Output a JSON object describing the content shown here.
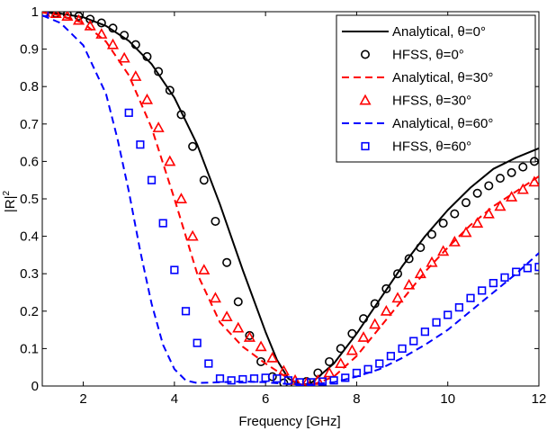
{
  "chart_data": {
    "type": "line",
    "title": "",
    "xlabel": "Frequency [GHz]",
    "ylabel": "|R|",
    "ylabel_superscript": "2",
    "xlim": [
      1.1,
      12
    ],
    "ylim": [
      0,
      1
    ],
    "x_ticks": [
      2,
      4,
      6,
      8,
      10,
      12
    ],
    "y_ticks": [
      0,
      0.1,
      0.2,
      0.3,
      0.4,
      0.5,
      0.6,
      0.7,
      0.8,
      0.9,
      1
    ],
    "x_tick_labels": [
      "2",
      "4",
      "6",
      "8",
      "10",
      "12"
    ],
    "y_tick_labels": [
      "0",
      "0.1",
      "0.2",
      "0.3",
      "0.4",
      "0.5",
      "0.6",
      "0.7",
      "0.8",
      "0.9",
      "1"
    ],
    "grid": false,
    "legend_position": "top-right",
    "series": [
      {
        "name": "Analytical, θ=0°",
        "style": "solid",
        "color": "#000000",
        "x": [
          1.1,
          1.5,
          2.0,
          2.5,
          3.0,
          3.5,
          4.0,
          4.5,
          5.0,
          5.5,
          6.0,
          6.25,
          6.5,
          6.75,
          7.0,
          7.5,
          8.0,
          8.5,
          9.0,
          9.5,
          10.0,
          10.5,
          11.0,
          11.5,
          12.0
        ],
        "y": [
          0.998,
          0.995,
          0.985,
          0.962,
          0.922,
          0.86,
          0.77,
          0.645,
          0.485,
          0.31,
          0.145,
          0.07,
          0.02,
          0.002,
          0.008,
          0.06,
          0.14,
          0.23,
          0.32,
          0.4,
          0.47,
          0.53,
          0.58,
          0.61,
          0.635
        ]
      },
      {
        "name": "HFSS, θ=0°",
        "style": "circle",
        "color": "#000000",
        "x": [
          1.15,
          1.4,
          1.65,
          1.9,
          2.15,
          2.4,
          2.65,
          2.9,
          3.15,
          3.4,
          3.65,
          3.9,
          4.15,
          4.4,
          4.65,
          4.9,
          5.15,
          5.4,
          5.65,
          5.9,
          6.15,
          6.4,
          6.65,
          6.9,
          7.15,
          7.4,
          7.65,
          7.9,
          8.15,
          8.4,
          8.65,
          8.9,
          9.15,
          9.4,
          9.65,
          9.9,
          10.15,
          10.4,
          10.65,
          10.9,
          11.15,
          11.4,
          11.65,
          11.9
        ],
        "y": [
          0.998,
          0.996,
          0.993,
          0.988,
          0.98,
          0.97,
          0.956,
          0.937,
          0.912,
          0.88,
          0.84,
          0.79,
          0.725,
          0.64,
          0.55,
          0.44,
          0.33,
          0.225,
          0.135,
          0.065,
          0.025,
          0.008,
          0.003,
          0.012,
          0.035,
          0.065,
          0.1,
          0.14,
          0.18,
          0.22,
          0.26,
          0.3,
          0.34,
          0.37,
          0.405,
          0.435,
          0.46,
          0.49,
          0.515,
          0.535,
          0.555,
          0.57,
          0.585,
          0.6
        ]
      },
      {
        "name": "Analytical, θ=30°",
        "style": "dashed",
        "color": "#ff0000",
        "x": [
          1.1,
          1.5,
          2.0,
          2.5,
          3.0,
          3.5,
          4.0,
          4.5,
          5.0,
          5.5,
          6.0,
          6.5,
          6.75,
          7.0,
          7.5,
          8.0,
          8.5,
          9.0,
          9.5,
          10.0,
          10.5,
          11.0,
          11.5,
          12.0
        ],
        "y": [
          0.998,
          0.99,
          0.97,
          0.92,
          0.83,
          0.69,
          0.5,
          0.3,
          0.17,
          0.105,
          0.06,
          0.02,
          0.005,
          0.002,
          0.025,
          0.08,
          0.155,
          0.23,
          0.305,
          0.37,
          0.43,
          0.48,
          0.52,
          0.56
        ]
      },
      {
        "name": "HFSS, θ=30°",
        "style": "triangle",
        "color": "#ff0000",
        "x": [
          1.15,
          1.4,
          1.65,
          1.9,
          2.15,
          2.4,
          2.65,
          2.9,
          3.15,
          3.4,
          3.65,
          3.9,
          4.15,
          4.4,
          4.65,
          4.9,
          5.15,
          5.4,
          5.65,
          5.9,
          6.15,
          6.4,
          6.65,
          6.9,
          7.15,
          7.4,
          7.65,
          7.9,
          8.15,
          8.4,
          8.65,
          8.9,
          9.15,
          9.4,
          9.65,
          9.9,
          10.15,
          10.4,
          10.65,
          10.9,
          11.15,
          11.4,
          11.65,
          11.9
        ],
        "y": [
          0.998,
          0.995,
          0.988,
          0.977,
          0.962,
          0.94,
          0.912,
          0.876,
          0.827,
          0.765,
          0.69,
          0.6,
          0.5,
          0.4,
          0.31,
          0.235,
          0.185,
          0.155,
          0.13,
          0.105,
          0.075,
          0.04,
          0.015,
          0.008,
          0.015,
          0.035,
          0.06,
          0.095,
          0.13,
          0.165,
          0.2,
          0.235,
          0.27,
          0.3,
          0.33,
          0.36,
          0.385,
          0.41,
          0.435,
          0.46,
          0.48,
          0.505,
          0.525,
          0.545
        ]
      },
      {
        "name": "Analytical, θ=60°",
        "style": "dashed",
        "color": "#0000ff",
        "x": [
          1.1,
          1.5,
          2.0,
          2.5,
          2.75,
          3.0,
          3.25,
          3.5,
          3.75,
          4.0,
          4.25,
          4.5,
          5.0,
          5.5,
          6.0,
          6.5,
          7.0,
          7.5,
          8.0,
          8.5,
          9.0,
          9.5,
          10.0,
          10.5,
          11.0,
          11.5,
          12.0
        ],
        "y": [
          0.99,
          0.97,
          0.91,
          0.78,
          0.66,
          0.52,
          0.36,
          0.22,
          0.11,
          0.045,
          0.015,
          0.008,
          0.01,
          0.012,
          0.01,
          0.005,
          0.004,
          0.01,
          0.025,
          0.045,
          0.075,
          0.11,
          0.15,
          0.2,
          0.25,
          0.3,
          0.355
        ]
      },
      {
        "name": "HFSS, θ=60°",
        "style": "square",
        "color": "#0000ff",
        "x": [
          1.15,
          3.0,
          3.25,
          3.5,
          3.75,
          4.0,
          4.25,
          4.5,
          4.75,
          5.0,
          5.25,
          5.5,
          5.75,
          6.0,
          6.25,
          6.5,
          6.75,
          7.0,
          7.25,
          7.5,
          7.75,
          8.0,
          8.25,
          8.5,
          8.75,
          9.0,
          9.25,
          9.5,
          9.75,
          10.0,
          10.25,
          10.5,
          10.75,
          11.0,
          11.25,
          11.5,
          11.75,
          12.0
        ],
        "y": [
          0.998,
          0.73,
          0.645,
          0.55,
          0.435,
          0.31,
          0.2,
          0.115,
          0.06,
          0.02,
          0.015,
          0.018,
          0.02,
          0.022,
          0.02,
          0.015,
          0.01,
          0.01,
          0.012,
          0.015,
          0.022,
          0.035,
          0.045,
          0.06,
          0.08,
          0.1,
          0.12,
          0.145,
          0.17,
          0.19,
          0.21,
          0.235,
          0.255,
          0.275,
          0.29,
          0.305,
          0.315,
          0.318
        ]
      }
    ]
  }
}
